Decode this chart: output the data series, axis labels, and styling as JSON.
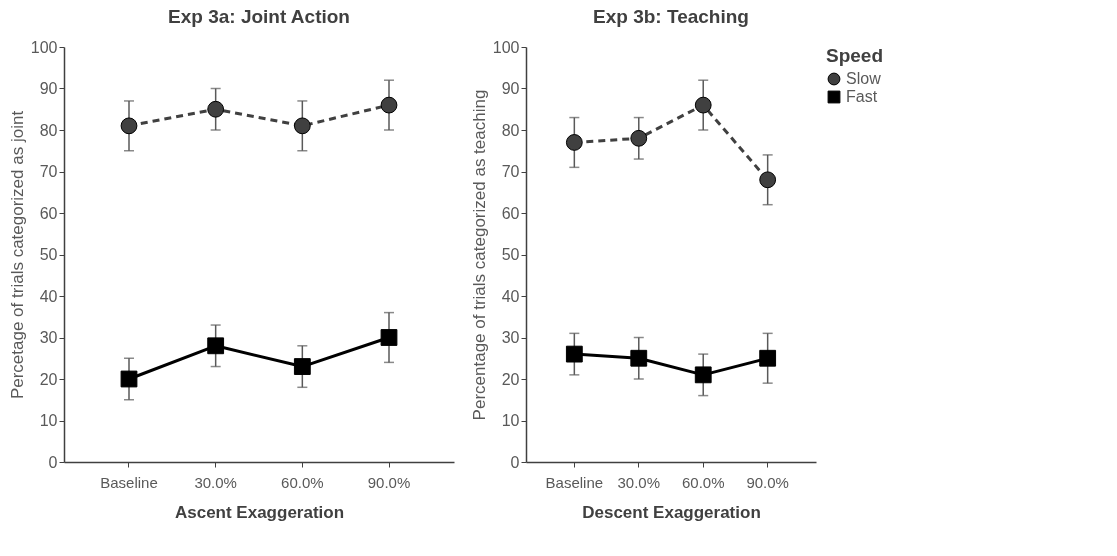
{
  "chart_data": [
    {
      "type": "line",
      "title": "Exp 3a: Joint Action",
      "xlabel": "Ascent  Exaggeration",
      "ylabel": "Percetage of trials categorized as joint",
      "categories": [
        "Baseline",
        "30.0%",
        "60.0%",
        "90.0%"
      ],
      "ylim": [
        0,
        100
      ],
      "yticks": [
        0,
        10,
        20,
        30,
        40,
        50,
        60,
        70,
        80,
        90,
        100
      ],
      "grid": false,
      "series": [
        {
          "color": "#404040",
          "marker": "circle",
          "line_style": "dashed",
          "values": [
            81,
            85,
            81,
            86
          ],
          "errors": [
            [
              75,
              87
            ],
            [
              80,
              90
            ],
            [
              75,
              87
            ],
            [
              80,
              92
            ]
          ]
        },
        {
          "color": "#000000",
          "marker": "square",
          "line_style": "solid",
          "values": [
            20,
            28,
            23,
            30
          ],
          "errors": [
            [
              15,
              25
            ],
            [
              23,
              33
            ],
            [
              18,
              28
            ],
            [
              24,
              36
            ]
          ]
        }
      ]
    },
    {
      "type": "line",
      "title": "Exp 3b: Teaching",
      "xlabel": "Descent  Exaggeration",
      "ylabel": "Percentage of trials categorized as teaching",
      "legend_title": "Speed",
      "categories": [
        "Baseline",
        "30.0%",
        "60.0%",
        "90.0%"
      ],
      "ylim": [
        0,
        100
      ],
      "yticks": [
        0,
        10,
        20,
        30,
        40,
        50,
        60,
        70,
        80,
        90,
        100
      ],
      "grid": false,
      "legend": "top right",
      "series": [
        {
          "name": "Slow",
          "color": "#404040",
          "marker": "circle",
          "line_style": "dashed",
          "values": [
            77,
            78,
            86,
            68
          ],
          "errors": [
            [
              71,
              83
            ],
            [
              73,
              83
            ],
            [
              80,
              92
            ],
            [
              62,
              74
            ]
          ]
        },
        {
          "name": "Fast",
          "color": "#000000",
          "marker": "square",
          "line_style": "solid",
          "values": [
            26,
            25,
            21,
            25
          ],
          "errors": [
            [
              21,
              31
            ],
            [
              20,
              30
            ],
            [
              16,
              26
            ],
            [
              19,
              31
            ]
          ]
        }
      ]
    }
  ]
}
